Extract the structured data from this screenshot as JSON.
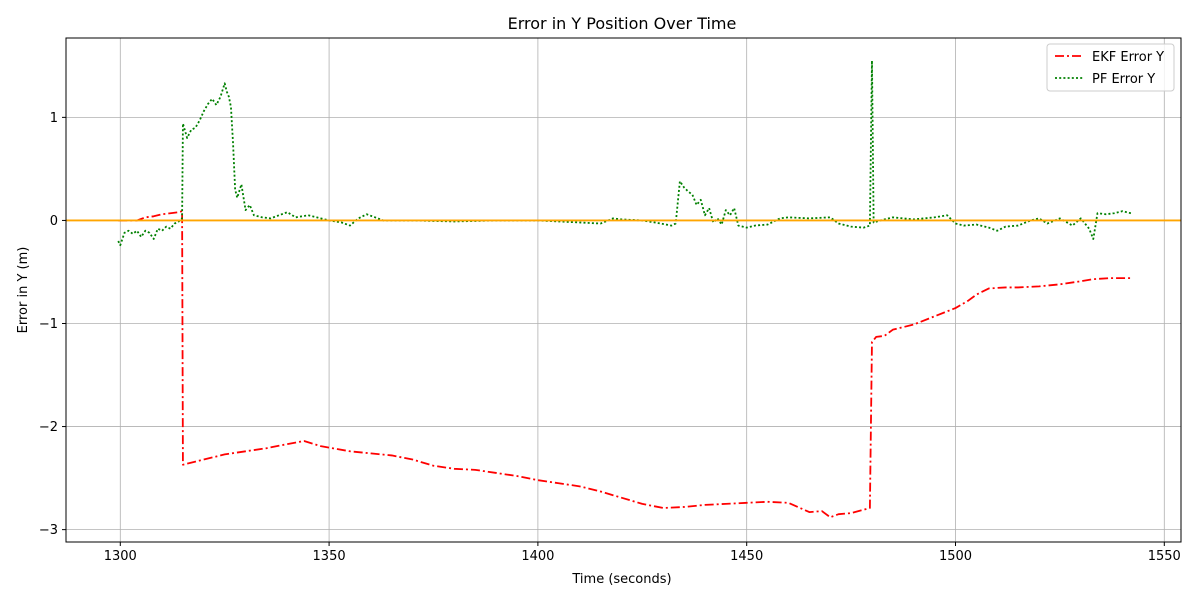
{
  "chart_data": {
    "type": "line",
    "title": "Error in Y Position Over Time",
    "xlabel": "Time (seconds)",
    "ylabel": "Error in Y (m)",
    "xlim": [
      1287,
      1554
    ],
    "ylim": [
      -3.12,
      1.77
    ],
    "x_ticks": [
      1300,
      1350,
      1400,
      1450,
      1500,
      1550
    ],
    "y_ticks": [
      1,
      0,
      -1,
      -2,
      -3
    ],
    "y_tick_labels": [
      "1",
      "0",
      "−1",
      "−2",
      "−3"
    ],
    "grid": true,
    "legend_position": "top-right",
    "reference_line": {
      "y": 0,
      "color": "#ffa500"
    },
    "series": [
      {
        "name": "EKF Error Y",
        "color": "#ff0000",
        "style": "dashdot",
        "points": [
          [
            1299.5,
            0.0
          ],
          [
            1304,
            0.0
          ],
          [
            1306,
            0.03
          ],
          [
            1308,
            0.04
          ],
          [
            1310,
            0.06
          ],
          [
            1312,
            0.07
          ],
          [
            1314,
            0.08
          ],
          [
            1314.8,
            0.09
          ],
          [
            1315.0,
            -2.37
          ],
          [
            1316,
            -2.36
          ],
          [
            1320,
            -2.32
          ],
          [
            1325,
            -2.27
          ],
          [
            1330,
            -2.24
          ],
          [
            1335,
            -2.21
          ],
          [
            1340,
            -2.17
          ],
          [
            1344,
            -2.14
          ],
          [
            1348,
            -2.19
          ],
          [
            1355,
            -2.24
          ],
          [
            1360,
            -2.26
          ],
          [
            1365,
            -2.28
          ],
          [
            1370,
            -2.32
          ],
          [
            1375,
            -2.38
          ],
          [
            1380,
            -2.41
          ],
          [
            1385,
            -2.42
          ],
          [
            1390,
            -2.45
          ],
          [
            1395,
            -2.48
          ],
          [
            1400,
            -2.52
          ],
          [
            1405,
            -2.55
          ],
          [
            1410,
            -2.58
          ],
          [
            1415,
            -2.63
          ],
          [
            1420,
            -2.69
          ],
          [
            1425,
            -2.75
          ],
          [
            1430,
            -2.79
          ],
          [
            1435,
            -2.78
          ],
          [
            1440,
            -2.76
          ],
          [
            1445,
            -2.75
          ],
          [
            1450,
            -2.74
          ],
          [
            1455,
            -2.73
          ],
          [
            1460,
            -2.74
          ],
          [
            1465,
            -2.83
          ],
          [
            1468,
            -2.82
          ],
          [
            1470,
            -2.88
          ],
          [
            1472,
            -2.85
          ],
          [
            1475,
            -2.84
          ],
          [
            1479.5,
            -2.79
          ],
          [
            1480,
            -1.18
          ],
          [
            1481,
            -1.13
          ],
          [
            1483,
            -1.12
          ],
          [
            1485,
            -1.06
          ],
          [
            1490,
            -1.01
          ],
          [
            1495,
            -0.93
          ],
          [
            1500,
            -0.85
          ],
          [
            1503,
            -0.78
          ],
          [
            1505,
            -0.72
          ],
          [
            1508,
            -0.66
          ],
          [
            1512,
            -0.65
          ],
          [
            1515,
            -0.65
          ],
          [
            1520,
            -0.64
          ],
          [
            1525,
            -0.62
          ],
          [
            1530,
            -0.59
          ],
          [
            1533,
            -0.57
          ],
          [
            1537,
            -0.56
          ],
          [
            1542,
            -0.56
          ]
        ]
      },
      {
        "name": "PF Error Y",
        "color": "#008000",
        "style": "dotted",
        "points": [
          [
            1299.5,
            -0.2
          ],
          [
            1300,
            -0.24
          ],
          [
            1301,
            -0.12
          ],
          [
            1302,
            -0.1
          ],
          [
            1303,
            -0.13
          ],
          [
            1304,
            -0.1
          ],
          [
            1305,
            -0.16
          ],
          [
            1306,
            -0.1
          ],
          [
            1307,
            -0.12
          ],
          [
            1308,
            -0.18
          ],
          [
            1309,
            -0.08
          ],
          [
            1310,
            -0.1
          ],
          [
            1311,
            -0.06
          ],
          [
            1312,
            -0.08
          ],
          [
            1313,
            -0.03
          ],
          [
            1314,
            -0.01
          ],
          [
            1314.8,
            0.02
          ],
          [
            1315.0,
            0.94
          ],
          [
            1316,
            0.8
          ],
          [
            1317,
            0.88
          ],
          [
            1318,
            0.9
          ],
          [
            1319,
            0.97
          ],
          [
            1320,
            1.06
          ],
          [
            1321,
            1.13
          ],
          [
            1322,
            1.18
          ],
          [
            1323,
            1.12
          ],
          [
            1324,
            1.2
          ],
          [
            1325,
            1.33
          ],
          [
            1325.5,
            1.25
          ],
          [
            1326,
            1.2
          ],
          [
            1326.5,
            1.1
          ],
          [
            1327,
            0.75
          ],
          [
            1327.5,
            0.3
          ],
          [
            1328,
            0.22
          ],
          [
            1329,
            0.35
          ],
          [
            1330,
            0.1
          ],
          [
            1331,
            0.15
          ],
          [
            1332,
            0.05
          ],
          [
            1334,
            0.03
          ],
          [
            1336,
            0.02
          ],
          [
            1338,
            0.05
          ],
          [
            1340,
            0.08
          ],
          [
            1342,
            0.03
          ],
          [
            1345,
            0.05
          ],
          [
            1348,
            0.02
          ],
          [
            1350,
            0.0
          ],
          [
            1353,
            -0.02
          ],
          [
            1355,
            -0.05
          ],
          [
            1357,
            0.02
          ],
          [
            1359,
            0.06
          ],
          [
            1361,
            0.03
          ],
          [
            1363,
            0.0
          ],
          [
            1370,
            0.0
          ],
          [
            1380,
            -0.01
          ],
          [
            1390,
            0.0
          ],
          [
            1400,
            0.0
          ],
          [
            1410,
            -0.02
          ],
          [
            1415,
            -0.03
          ],
          [
            1418,
            0.02
          ],
          [
            1420,
            0.01
          ],
          [
            1425,
            0.0
          ],
          [
            1428,
            -0.02
          ],
          [
            1432,
            -0.05
          ],
          [
            1433,
            -0.03
          ],
          [
            1434,
            0.38
          ],
          [
            1435,
            0.32
          ],
          [
            1436,
            0.28
          ],
          [
            1437,
            0.25
          ],
          [
            1438,
            0.15
          ],
          [
            1439,
            0.2
          ],
          [
            1440,
            0.05
          ],
          [
            1441,
            0.12
          ],
          [
            1442,
            -0.02
          ],
          [
            1443,
            0.02
          ],
          [
            1444,
            -0.04
          ],
          [
            1445,
            0.1
          ],
          [
            1446,
            0.05
          ],
          [
            1447,
            0.12
          ],
          [
            1448,
            -0.05
          ],
          [
            1450,
            -0.07
          ],
          [
            1452,
            -0.05
          ],
          [
            1455,
            -0.04
          ],
          [
            1458,
            0.02
          ],
          [
            1460,
            0.03
          ],
          [
            1465,
            0.02
          ],
          [
            1470,
            0.03
          ],
          [
            1472,
            -0.03
          ],
          [
            1475,
            -0.06
          ],
          [
            1478,
            -0.07
          ],
          [
            1479.5,
            -0.05
          ],
          [
            1480,
            1.55
          ],
          [
            1480.4,
            -0.02
          ],
          [
            1482,
            0.0
          ],
          [
            1485,
            0.03
          ],
          [
            1490,
            0.01
          ],
          [
            1495,
            0.03
          ],
          [
            1498,
            0.05
          ],
          [
            1500,
            -0.03
          ],
          [
            1502,
            -0.05
          ],
          [
            1505,
            -0.04
          ],
          [
            1508,
            -0.07
          ],
          [
            1510,
            -0.1
          ],
          [
            1512,
            -0.06
          ],
          [
            1515,
            -0.05
          ],
          [
            1518,
            0.0
          ],
          [
            1520,
            0.02
          ],
          [
            1522,
            -0.03
          ],
          [
            1525,
            0.02
          ],
          [
            1528,
            -0.05
          ],
          [
            1530,
            0.02
          ],
          [
            1532,
            -0.08
          ],
          [
            1533,
            -0.18
          ],
          [
            1534,
            0.07
          ],
          [
            1536,
            0.06
          ],
          [
            1538,
            0.07
          ],
          [
            1540,
            0.09
          ],
          [
            1542,
            0.07
          ]
        ]
      }
    ]
  }
}
